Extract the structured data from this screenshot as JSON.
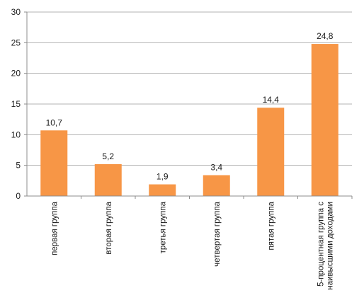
{
  "chart_data": {
    "type": "bar",
    "categories": [
      [
        "первая  группа"
      ],
      [
        "вторая группа"
      ],
      [
        "третья группа"
      ],
      [
        "четвертая группа"
      ],
      [
        "пятая группа"
      ],
      [
        "5-процентная группа с",
        "наивысшими доходами"
      ]
    ],
    "values": [
      10.7,
      5.2,
      1.9,
      3.4,
      14.4,
      24.8
    ],
    "data_labels": [
      "10,7",
      "5,2",
      "1,9",
      "3,4",
      "14,4",
      "24,8"
    ],
    "y_ticks": [
      "0",
      "5",
      "10",
      "15",
      "20",
      "25",
      "30"
    ],
    "ylim": [
      0,
      30
    ],
    "grid": true,
    "legend": "none",
    "title": "",
    "xlabel": "",
    "ylabel": "",
    "colors": {
      "bar": "#F79646",
      "grid": "#B3B3B3",
      "axis": "#8C8C8C",
      "text": "#1a1a1a"
    }
  }
}
